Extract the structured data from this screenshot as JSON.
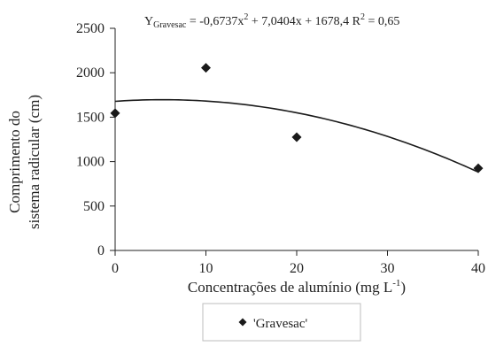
{
  "chart_data": {
    "type": "scatter",
    "title": "",
    "equation": {
      "prefix": "Y",
      "subscript": "Gravesac",
      "body_1": " = -0,6737x",
      "exp_1": "2",
      "body_2": " + 7,0404x + 1678,4  R",
      "exp_2": "2",
      "body_3": " = 0,65",
      "coefficients": {
        "a": -0.6737,
        "b": 7.0404,
        "c": 1678.4
      },
      "r2": 0.65
    },
    "xlabel": {
      "text": "Concentrações de alumínio (mg L",
      "superscript": "-1",
      "suffix": ")"
    },
    "ylabel": [
      "Comprimento do",
      "sistema radicular (cm)"
    ],
    "xlim": [
      0,
      40
    ],
    "ylim": [
      0,
      2500
    ],
    "xticks": [
      0,
      10,
      20,
      30,
      40
    ],
    "yticks": [
      0,
      500,
      1000,
      1500,
      2000,
      2500
    ],
    "grid": false,
    "legend_position": "bottom-center",
    "series": [
      {
        "name": "'Gravesac'",
        "marker": "diamond",
        "color": "#1a1a1a",
        "points": [
          {
            "x": 0,
            "y": 1545
          },
          {
            "x": 10,
            "y": 2055
          },
          {
            "x": 20,
            "y": 1275
          },
          {
            "x": 40,
            "y": 925
          }
        ]
      }
    ],
    "trendline": {
      "type": "quadratic",
      "x_range": [
        0,
        40
      ],
      "color": "#1a1a1a"
    }
  }
}
